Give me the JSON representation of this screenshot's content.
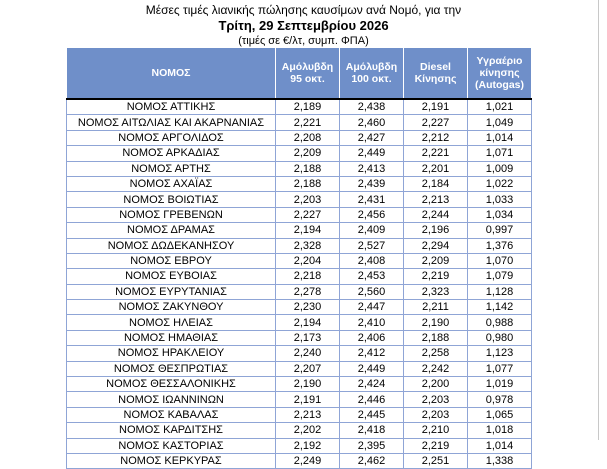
{
  "title": {
    "line1": "Μέσες τιμές λιανικής πώλησης καυσίμων ανά Νομό, για την",
    "line2": "Τρίτη, 29 Σεπτεμβρίου 2026",
    "line3": "(τιμές σε €/λτ, συμπ. ΦΠΑ)"
  },
  "columns": [
    "ΝΟΜΟΣ",
    "Αμόλυβδη 95 οκτ.",
    "Αμόλυβδη 100 οκτ.",
    "Diesel Κίνησης",
    "Υγραέριο κίνησης (Autogas)"
  ],
  "rows": [
    [
      "ΝΟΜΟΣ ΑΤΤΙΚΗΣ",
      "2,189",
      "2,438",
      "2,191",
      "1,021"
    ],
    [
      "ΝΟΜΟΣ ΑΙΤΩΛΙΑΣ ΚΑΙ ΑΚΑΡΝΑΝΙΑΣ",
      "2,221",
      "2,460",
      "2,227",
      "1,049"
    ],
    [
      "ΝΟΜΟΣ ΑΡΓΟΛΙΔΟΣ",
      "2,208",
      "2,427",
      "2,212",
      "1,014"
    ],
    [
      "ΝΟΜΟΣ ΑΡΚΑΔΙΑΣ",
      "2,209",
      "2,449",
      "2,221",
      "1,071"
    ],
    [
      "ΝΟΜΟΣ ΑΡΤΗΣ",
      "2,188",
      "2,413",
      "2,201",
      "1,009"
    ],
    [
      "ΝΟΜΟΣ ΑΧΑΪΑΣ",
      "2,188",
      "2,439",
      "2,184",
      "1,022"
    ],
    [
      "ΝΟΜΟΣ ΒΟΙΩΤΙΑΣ",
      "2,203",
      "2,431",
      "2,213",
      "1,033"
    ],
    [
      "ΝΟΜΟΣ ΓΡΕΒΕΝΩΝ",
      "2,227",
      "2,456",
      "2,244",
      "1,034"
    ],
    [
      "ΝΟΜΟΣ ΔΡΑΜΑΣ",
      "2,194",
      "2,409",
      "2,196",
      "0,997"
    ],
    [
      "ΝΟΜΟΣ ΔΩΔΕΚΑΝΗΣΟΥ",
      "2,328",
      "2,527",
      "2,294",
      "1,376"
    ],
    [
      "ΝΟΜΟΣ ΕΒΡΟΥ",
      "2,204",
      "2,408",
      "2,209",
      "1,070"
    ],
    [
      "ΝΟΜΟΣ ΕΥΒΟΙΑΣ",
      "2,218",
      "2,453",
      "2,219",
      "1,079"
    ],
    [
      "ΝΟΜΟΣ ΕΥΡΥΤΑΝΙΑΣ",
      "2,278",
      "2,560",
      "2,323",
      "1,128"
    ],
    [
      "ΝΟΜΟΣ ΖΑΚΥΝΘΟΥ",
      "2,230",
      "2,447",
      "2,211",
      "1,142"
    ],
    [
      "ΝΟΜΟΣ ΗΛΕΙΑΣ",
      "2,194",
      "2,410",
      "2,190",
      "0,988"
    ],
    [
      "ΝΟΜΟΣ ΗΜΑΘΙΑΣ",
      "2,173",
      "2,406",
      "2,188",
      "0,980"
    ],
    [
      "ΝΟΜΟΣ ΗΡΑΚΛΕΙΟΥ",
      "2,240",
      "2,412",
      "2,258",
      "1,123"
    ],
    [
      "ΝΟΜΟΣ ΘΕΣΠΡΩΤΙΑΣ",
      "2,207",
      "2,449",
      "2,242",
      "1,077"
    ],
    [
      "ΝΟΜΟΣ ΘΕΣΣΑΛΟΝΙΚΗΣ",
      "2,190",
      "2,424",
      "2,200",
      "1,019"
    ],
    [
      "ΝΟΜΟΣ ΙΩΑΝΝΙΝΩΝ",
      "2,191",
      "2,446",
      "2,203",
      "0,978"
    ],
    [
      "ΝΟΜΟΣ ΚΑΒΑΛΑΣ",
      "2,213",
      "2,445",
      "2,203",
      "1,065"
    ],
    [
      "ΝΟΜΟΣ ΚΑΡΔΙΤΣΗΣ",
      "2,202",
      "2,418",
      "2,210",
      "1,018"
    ],
    [
      "ΝΟΜΟΣ ΚΑΣΤΟΡΙΑΣ",
      "2,192",
      "2,395",
      "2,219",
      "1,014"
    ],
    [
      "ΝΟΜΟΣ ΚΕΡΚΥΡΑΣ",
      "2,249",
      "2,462",
      "2,251",
      "1,338"
    ]
  ]
}
